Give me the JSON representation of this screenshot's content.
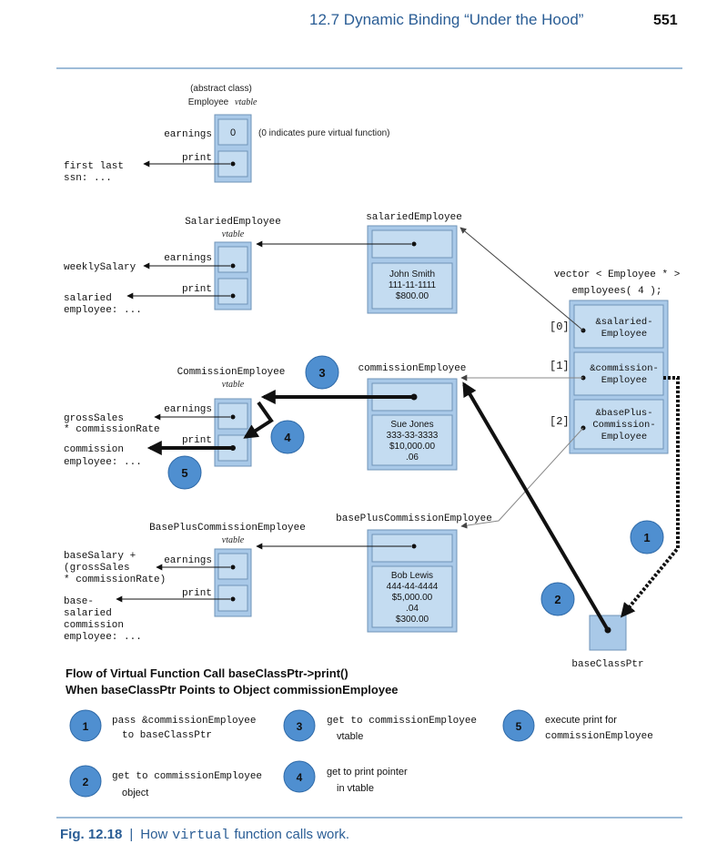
{
  "header": {
    "running_title": "12.7  Dynamic Binding “Under the Hood”",
    "page_number": "551"
  },
  "employee_vtable": {
    "caption_line1": "(abstract class)",
    "caption_name": "Employee",
    "caption_vtable": "vtable",
    "earnings_label": "earnings",
    "earnings_value": "0",
    "pure_virtual_note": "(0 indicates pure virtual function)",
    "print_label": "print",
    "print_target_line1": "first last",
    "print_target_line2": "ssn: ..."
  },
  "salaried_vtable": {
    "caption_name": "SalariedEmployee",
    "caption_vtable": "vtable",
    "earnings_label": "earnings",
    "earnings_target": "weeklySalary",
    "print_label": "print",
    "print_target_line1": "salaried",
    "print_target_line2": "employee: ..."
  },
  "commission_vtable": {
    "caption_name": "CommissionEmployee",
    "caption_vtable": "vtable",
    "earnings_label": "earnings",
    "earnings_target_line1": "grossSales",
    "earnings_target_line2": "* commissionRate",
    "print_label": "print",
    "print_target_line1": "commission",
    "print_target_line2": "employee: ..."
  },
  "baseplus_vtable": {
    "caption_name": "BasePlusCommissionEmployee",
    "caption_vtable": "vtable",
    "earnings_label": "earnings",
    "earnings_target_line1": "baseSalary +",
    "earnings_target_line2": "(grossSales",
    "earnings_target_line3": "* commissionRate)",
    "print_label": "print",
    "print_target_line1": "base-",
    "print_target_line2": "salaried",
    "print_target_line3": "commission",
    "print_target_line4": "employee: ..."
  },
  "objects": {
    "salaried": {
      "label": "salariedEmployee",
      "name": "John Smith",
      "ssn": "111-11-1111",
      "amount": "$800.00"
    },
    "commission": {
      "label": "commissionEmployee",
      "name": "Sue Jones",
      "ssn": "333-33-3333",
      "sales": "$10,000.00",
      "rate": ".06"
    },
    "baseplus": {
      "label": "basePlusCommissionEmployee",
      "name": "Bob Lewis",
      "ssn": "444-44-4444",
      "sales": "$5,000.00",
      "rate": ".04",
      "base": "$300.00"
    }
  },
  "vector": {
    "caption_line1": "vector < Employee * >",
    "caption_line2": "employees( 4 );",
    "index0": "[0]",
    "index1": "[1]",
    "index2": "[2]",
    "cell0_line1": "&salaried-",
    "cell0_line2": "Employee",
    "cell1_line1": "&commission-",
    "cell1_line2": "Employee",
    "cell2_line1": "&basePlus-",
    "cell2_line2": "Commission-",
    "cell2_line3": "Employee"
  },
  "pointer": {
    "label": "baseClassPtr"
  },
  "steps": {
    "step1": "1",
    "step2": "2",
    "step3": "3",
    "step4": "4",
    "step5": "5"
  },
  "legend": {
    "title_line1": "Flow of Virtual Function Call baseClassPtr->print()",
    "title_line2": "When baseClassPtr Points to Object commissionEmployee",
    "item1_line1": "pass &commissionEmployee",
    "item1_line2": "to baseClassPtr",
    "item2_line1": "get to commissionEmployee",
    "item2_line2": "object",
    "item3_line1": "get to commissionEmployee",
    "item3_line2": "vtable",
    "item4_line1": "get to print pointer",
    "item4_line2": "in vtable",
    "item5_line1": "execute print for",
    "item5_line2": "commissionEmployee"
  },
  "caption": {
    "fig_label": "Fig. 12.18",
    "separator": "|",
    "text_before": "How",
    "text_code": "virtual",
    "text_after": "function calls work."
  },
  "colors": {
    "box_fill": "#a9c9e8",
    "box_border": "#6f94b8",
    "badge_fill": "#4f8fd0",
    "rule": "#7ea6cc",
    "accent_text": "#2a5d95"
  }
}
